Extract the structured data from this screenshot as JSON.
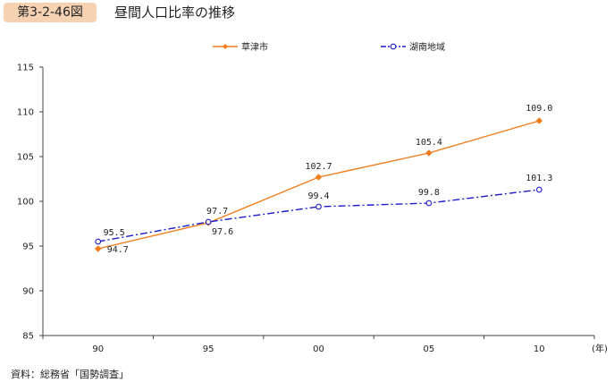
{
  "figure": {
    "number": "第3-2-46図",
    "title": "昼間人口比率の推移"
  },
  "source": "資料：総務省「国勢調査」",
  "chart_data": {
    "type": "line",
    "x": [
      "90",
      "95",
      "00",
      "05",
      "10"
    ],
    "x_unit": "(年)",
    "ylim": [
      85,
      115
    ],
    "y_ticks": [
      85,
      90,
      95,
      100,
      105,
      110,
      115
    ],
    "grid": false,
    "legend_position": "top",
    "series": [
      {
        "name": "草津市",
        "values": [
          94.7,
          97.6,
          102.7,
          105.4,
          109.0
        ],
        "labels": [
          "94.7",
          "97.6",
          "102.7",
          "105.4",
          "109.0"
        ],
        "color": "#f07c1a",
        "marker": "diamond",
        "line": "solid"
      },
      {
        "name": "湖南地域",
        "values": [
          95.5,
          97.7,
          99.4,
          99.8,
          101.3
        ],
        "labels": [
          "95.5",
          "97.7",
          "99.4",
          "99.8",
          "101.3"
        ],
        "color": "#1c1ccc",
        "marker": "circle",
        "line": "dash-dot"
      }
    ]
  }
}
